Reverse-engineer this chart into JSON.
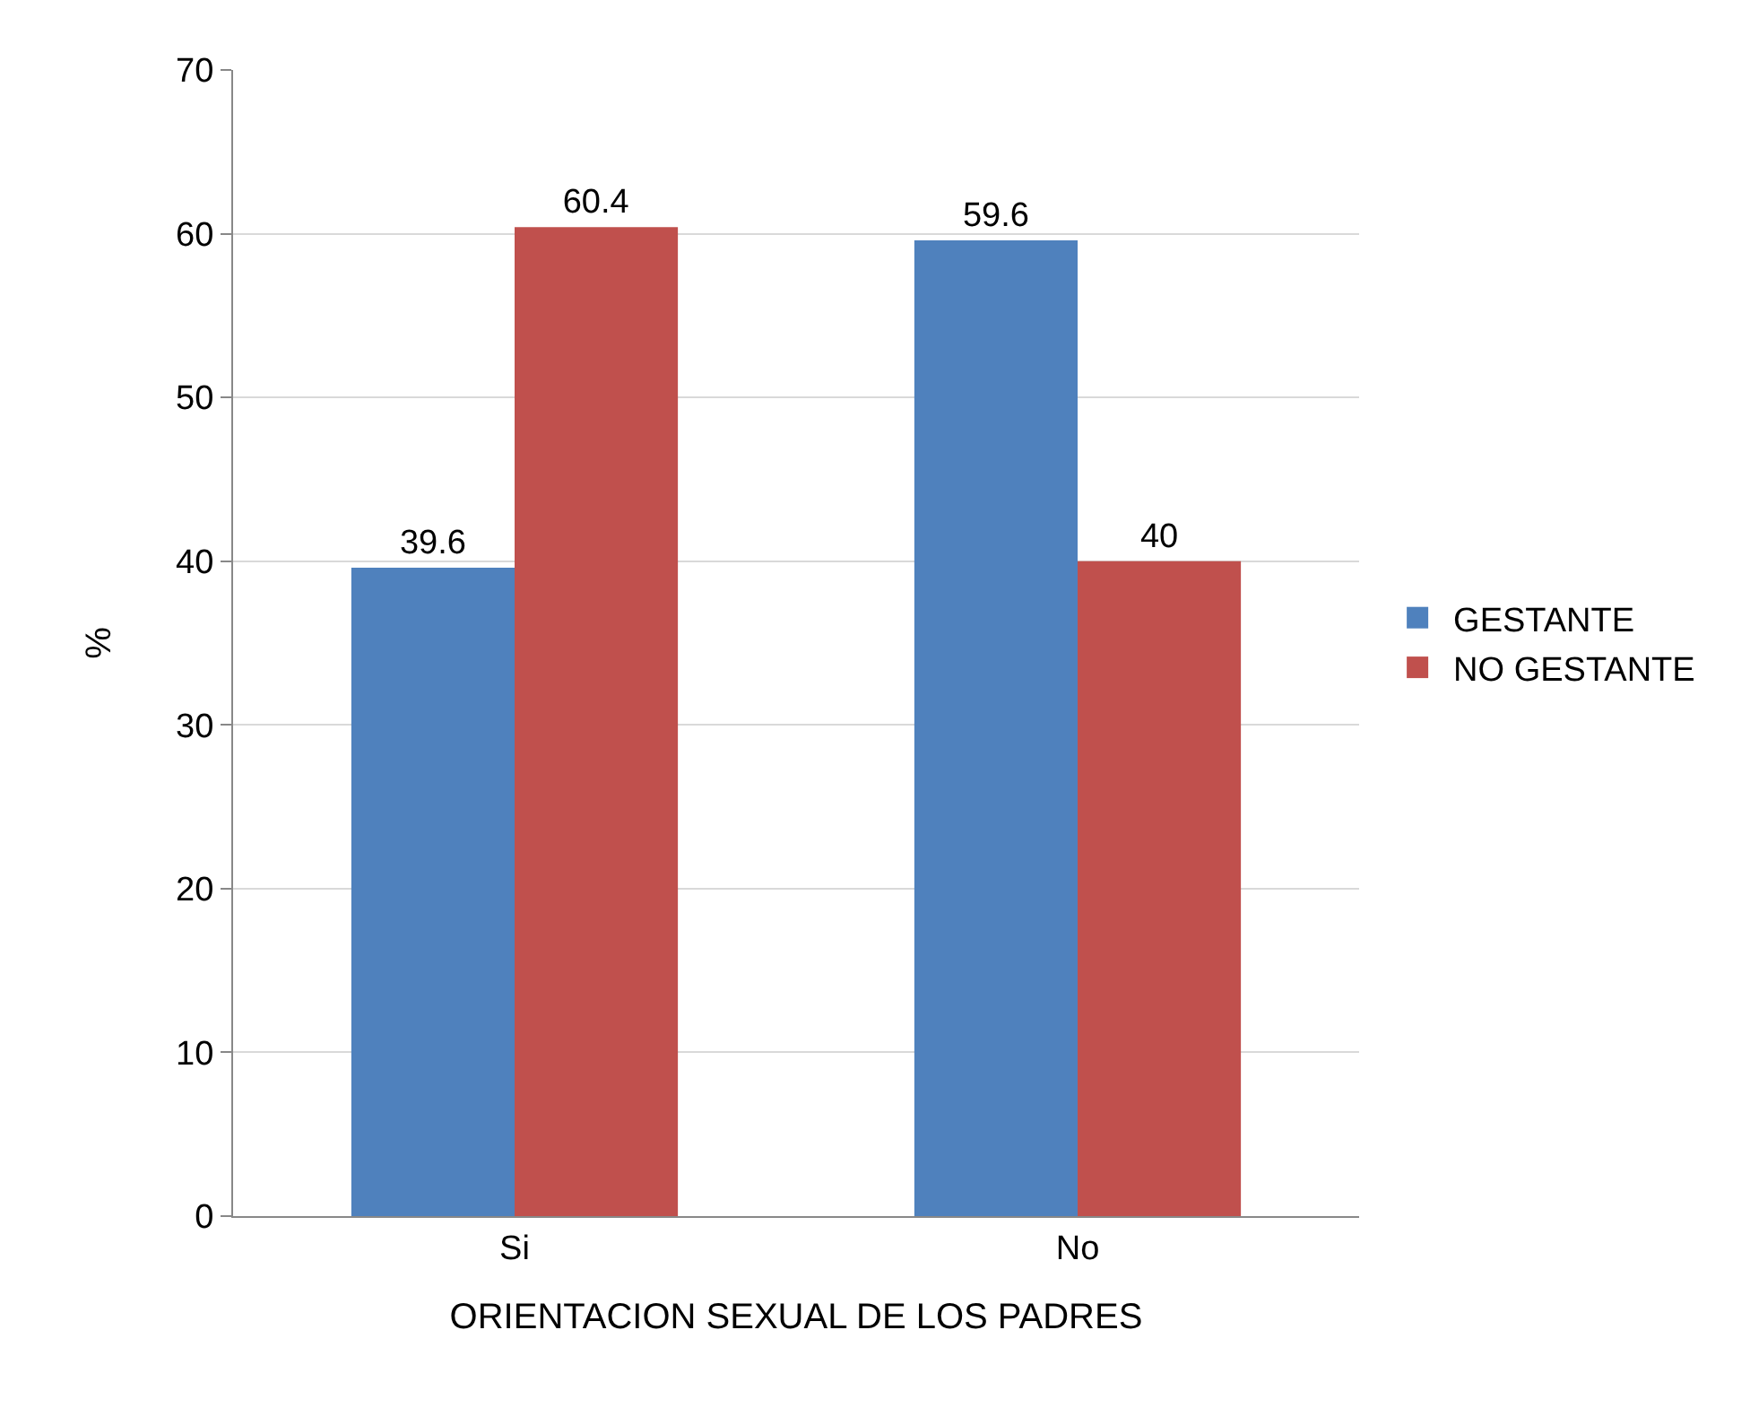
{
  "chart_data": {
    "type": "bar",
    "xlabel": "ORIENTACION SEXUAL DE LOS PADRES",
    "ylabel": "%",
    "categories": [
      "Si",
      "No"
    ],
    "series": [
      {
        "name": "GESTANTE",
        "color": "#4f81bd",
        "values": [
          39.6,
          59.6
        ]
      },
      {
        "name": "NO GESTANTE",
        "color": "#c0504d",
        "values": [
          60.4,
          40
        ]
      }
    ],
    "ylim": [
      0,
      70
    ],
    "yticks": [
      0,
      10,
      20,
      30,
      40,
      50,
      60,
      70
    ],
    "grid": "y",
    "legend": "right",
    "data_labels": true
  }
}
